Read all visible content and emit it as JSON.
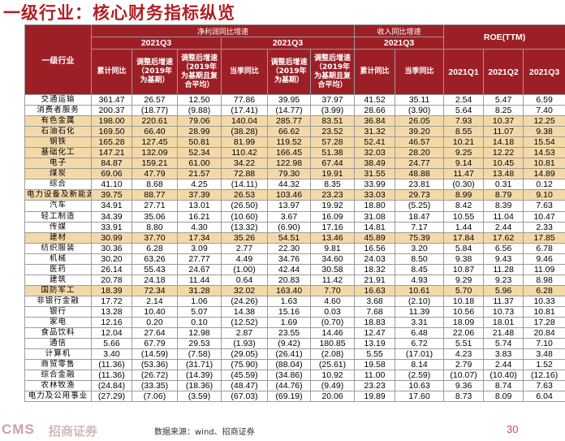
{
  "page_title": "一级行业：核心财务指标纵览",
  "table": {
    "header": {
      "industry_col": "一级行业",
      "profit_group": "净利润同比增速",
      "revenue_group": "收入同比增速",
      "roe_group": "ROE(TTM)",
      "q3_label": "2021Q3",
      "sub": {
        "cum_yoy": "累计同比",
        "adj_2019": "调整后增速（2019年为基期）",
        "adj_2019_cagr": "调整后增速（2019年为基期且复合平均）",
        "q_yoy": "当季同比",
        "roe_q1": "2021Q1",
        "roe_q2": "2021Q2",
        "roe_q3": "2021Q3"
      }
    },
    "rows": [
      {
        "name": "交通运输",
        "v": [
          "361.47",
          "26.57",
          "12.50",
          "77.86",
          "39.95",
          "37.97",
          "41.52",
          "35.11",
          "2.54",
          "5.47",
          "6.59"
        ]
      },
      {
        "name": "消费者服务",
        "v": [
          "200.37",
          "(18.77)",
          "(9.88)",
          "(17.41)",
          "(14.77)",
          "(3.99)",
          "28.66",
          "(3.90)",
          "5.64",
          "8.25",
          "7.40"
        ]
      },
      {
        "name": "有色金属",
        "v": [
          "198.00",
          "220.61",
          "79.06",
          "140.04",
          "285.77",
          "83.51",
          "36.84",
          "26.05",
          "7.93",
          "10.37",
          "12.25"
        ],
        "highlight": true
      },
      {
        "name": "石油石化",
        "v": [
          "169.50",
          "66.40",
          "28.99",
          "(38.28)",
          "66.62",
          "23.52",
          "31.32",
          "39.20",
          "8.55",
          "11.07",
          "9.38"
        ],
        "highlight": true
      },
      {
        "name": "钢铁",
        "v": [
          "165.28",
          "127.45",
          "50.81",
          "81.99",
          "119.52",
          "57.28",
          "52.41",
          "46.57",
          "10.21",
          "14.18",
          "15.54"
        ],
        "highlight": true
      },
      {
        "name": "基础化工",
        "v": [
          "147.21",
          "132.09",
          "52.34",
          "110.42",
          "166.45",
          "51.38",
          "32.03",
          "28.20",
          "9.25",
          "12.22",
          "14.53"
        ],
        "highlight": true
      },
      {
        "name": "电子",
        "v": [
          "84.87",
          "159.21",
          "61.00",
          "34.22",
          "122.98",
          "67.44",
          "38.49",
          "24.77",
          "9.14",
          "10.45",
          "10.81"
        ],
        "highlight": true
      },
      {
        "name": "煤炭",
        "v": [
          "69.06",
          "47.79",
          "21.57",
          "72.88",
          "79.30",
          "19.91",
          "31.55",
          "48.88",
          "11.47",
          "13.48",
          "14.89"
        ],
        "highlight": true
      },
      {
        "name": "综合",
        "v": [
          "41.10",
          "8.68",
          "4.25",
          "(14.11)",
          "44.32",
          "8.35",
          "33.99",
          "23.81",
          "(0.30)",
          "0.31",
          "0.12"
        ]
      },
      {
        "name": "电力设备及新能源",
        "v": [
          "39.75",
          "88.77",
          "37.39",
          "26.53",
          "103.46",
          "23.23",
          "33.03",
          "29.73",
          "8.99",
          "8.79",
          "9.10"
        ],
        "highlight": true
      },
      {
        "name": "汽车",
        "v": [
          "34.91",
          "27.71",
          "13.01",
          "(26.50)",
          "13.97",
          "19.92",
          "18.80",
          "(5.25)",
          "8.42",
          "8.39",
          "7.63"
        ]
      },
      {
        "name": "轻工制造",
        "v": [
          "34.39",
          "35.06",
          "16.21",
          "(10.60)",
          "3.67",
          "16.09",
          "31.08",
          "18.47",
          "10.55",
          "11.04",
          "10.47"
        ]
      },
      {
        "name": "传媒",
        "v": [
          "33.91",
          "8.80",
          "4.30",
          "(13.32)",
          "(6.90)",
          "17.16",
          "14.81",
          "7.17",
          "1.44",
          "2.44",
          "2.33"
        ]
      },
      {
        "name": "建材",
        "v": [
          "30.99",
          "37.70",
          "17.34",
          "35.26",
          "54.51",
          "13.46",
          "45.89",
          "75.39",
          "17.84",
          "17.62",
          "17.85"
        ],
        "highlight": true
      },
      {
        "name": "纺织服装",
        "v": [
          "30.36",
          "6.28",
          "3.09",
          "2.77",
          "22.30",
          "9.81",
          "16.56",
          "3.20",
          "5.84",
          "6.56",
          "6.78"
        ]
      },
      {
        "name": "机械",
        "v": [
          "30.20",
          "63.26",
          "27.77",
          "4.49",
          "34.76",
          "34.60",
          "24.03",
          "8.50",
          "9.38",
          "9.43",
          "9.46"
        ]
      },
      {
        "name": "医药",
        "v": [
          "26.14",
          "55.43",
          "24.67",
          "(1.00)",
          "42.44",
          "30.58",
          "18.32",
          "8.45",
          "10.87",
          "11.28",
          "11.09"
        ]
      },
      {
        "name": "建筑",
        "v": [
          "20.78",
          "24.18",
          "11.44",
          "0.64",
          "20.83",
          "11.42",
          "21.91",
          "4.93",
          "9.29",
          "9.23",
          "8.98"
        ]
      },
      {
        "name": "国防军工",
        "v": [
          "18.39",
          "72.34",
          "31.28",
          "32.02",
          "163.40",
          "7.70",
          "16.63",
          "10.61",
          "5.70",
          "5.96",
          "6.28"
        ],
        "highlight": true
      },
      {
        "name": "非银行金融",
        "v": [
          "17.72",
          "2.14",
          "1.06",
          "(24.26)",
          "1.63",
          "4.60",
          "3.68",
          "(2.10)",
          "10.18",
          "11.37",
          "10.33"
        ]
      },
      {
        "name": "银行",
        "v": [
          "13.28",
          "10.40",
          "5.07",
          "14.38",
          "15.16",
          "0.03",
          "7.68",
          "11.39",
          "10.56",
          "10.73",
          "10.81"
        ]
      },
      {
        "name": "家电",
        "v": [
          "12.16",
          "0.20",
          "0.10",
          "(12.52)",
          "1.69",
          "(0.70)",
          "18.83",
          "3.31",
          "18.09",
          "18.01",
          "17.28"
        ]
      },
      {
        "name": "食品饮料",
        "v": [
          "12.04",
          "27.64",
          "12.98",
          "2.87",
          "23.55",
          "14.46",
          "12.47",
          "6.48",
          "22.06",
          "21.48",
          "20.84"
        ]
      },
      {
        "name": "通信",
        "v": [
          "5.66",
          "67.79",
          "29.53",
          "(1.93)",
          "(9.42)",
          "180.85",
          "13.19",
          "6.72",
          "5.51",
          "5.74",
          "7.10"
        ]
      },
      {
        "name": "计算机",
        "v": [
          "3.40",
          "(14.59)",
          "(7.58)",
          "(29.05)",
          "(26.41)",
          "(2.08)",
          "5.55",
          "(17.01)",
          "4.23",
          "3.83",
          "3.48"
        ]
      },
      {
        "name": "商贸零售",
        "v": [
          "(11.36)",
          "(53.36)",
          "(31.71)",
          "(75.90)",
          "(88.04)",
          "(25.61)",
          "19.58",
          "8.14",
          "2.79",
          "2.44",
          "1.52"
        ]
      },
      {
        "name": "综合金融",
        "v": [
          "(11.36)",
          "(26.72)",
          "(14.39)",
          "(45.59)",
          "(34.86)",
          "10.92",
          "11.00",
          "(2.59)",
          "(10.07)",
          "(10.40)",
          "(12.16)"
        ]
      },
      {
        "name": "农林牧渔",
        "v": [
          "(24.84)",
          "(33.35)",
          "(18.36)",
          "(48.47)",
          "(44.76)",
          "(9.49)",
          "23.23",
          "10.63",
          "9.36",
          "8.74",
          "7.63"
        ]
      },
      {
        "name": "电力及公用事业",
        "v": [
          "(27.29)",
          "(7.06)",
          "(3.59)",
          "(67.03)",
          "(69.19)",
          "20.06",
          "19.89",
          "17.60",
          "8.73",
          "8.09",
          "6.04"
        ]
      }
    ]
  },
  "footer": {
    "brand_en": "CMS",
    "brand_cn": "招商证券",
    "source": "数据来源：wind、招商证券",
    "page_number": "30"
  }
}
